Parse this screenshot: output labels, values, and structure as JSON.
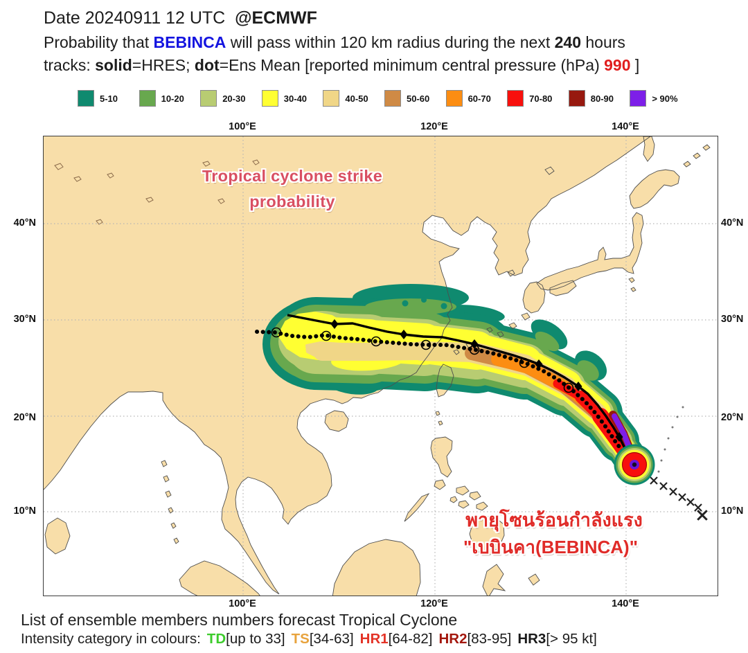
{
  "header": {
    "date_line": "Date 20240911 12 UTC",
    "handle": "@ECMWF",
    "prob_pre": "Probability that ",
    "storm_name": "BEBINCA",
    "prob_mid": " will pass within 120 km radius during the next ",
    "hours": "240",
    "prob_suf": " hours",
    "tracks_label": "tracks: ",
    "solid_word": "solid",
    "solid_eq": "=HRES; ",
    "dot_word": "dot",
    "dot_eq": "=Ens Mean [reported minimum central pressure (hPa) ",
    "pressure": "990",
    "bracket_close": " ]"
  },
  "legend": {
    "items": [
      {
        "label": "5-10",
        "color": "#0f8a6f"
      },
      {
        "label": "10-20",
        "color": "#68a84e"
      },
      {
        "label": "20-30",
        "color": "#b8cc72"
      },
      {
        "label": "30-40",
        "color": "#ffff32"
      },
      {
        "label": "40-50",
        "color": "#f0d687"
      },
      {
        "label": "50-60",
        "color": "#cf8a45"
      },
      {
        "label": "60-70",
        "color": "#fc8d12"
      },
      {
        "label": "70-80",
        "color": "#f8100d"
      },
      {
        "label": "80-90",
        "color": "#97190f"
      },
      {
        "label": "> 90%",
        "color": "#7d1fe8"
      }
    ]
  },
  "map": {
    "overlay_title": {
      "line1": "Tropical cyclone strike",
      "line2": "probability",
      "color": "#d94f62"
    },
    "thai_label": {
      "line1": "พายุโซนร้อนกำลังแรง",
      "line2": "\"เบบินคา(BEBINCA)\"",
      "color": "#e02b28"
    },
    "axis": {
      "lon_labels": [
        "100°E",
        "120°E",
        "140°E"
      ],
      "lat_labels": [
        "40°N",
        "30°N",
        "20°N",
        "10°N"
      ]
    }
  },
  "footer": {
    "line1": "List of ensemble members numbers forecast Tropical Cyclone",
    "line2_label": "Intensity category in colours:",
    "categories": [
      {
        "code": "TD",
        "range": "[up to 33]",
        "color": "#3dcc2c"
      },
      {
        "code": "TS",
        "range": "[34-63]",
        "color": "#e8a33d"
      },
      {
        "code": "HR1",
        "range": "[64-82]",
        "color": "#e33327"
      },
      {
        "code": "HR2",
        "range": "[83-95]",
        "color": "#a3170d"
      },
      {
        "code": "HR3",
        "range": "[> 95 kt]",
        "color": "#1a1a1a"
      }
    ]
  }
}
